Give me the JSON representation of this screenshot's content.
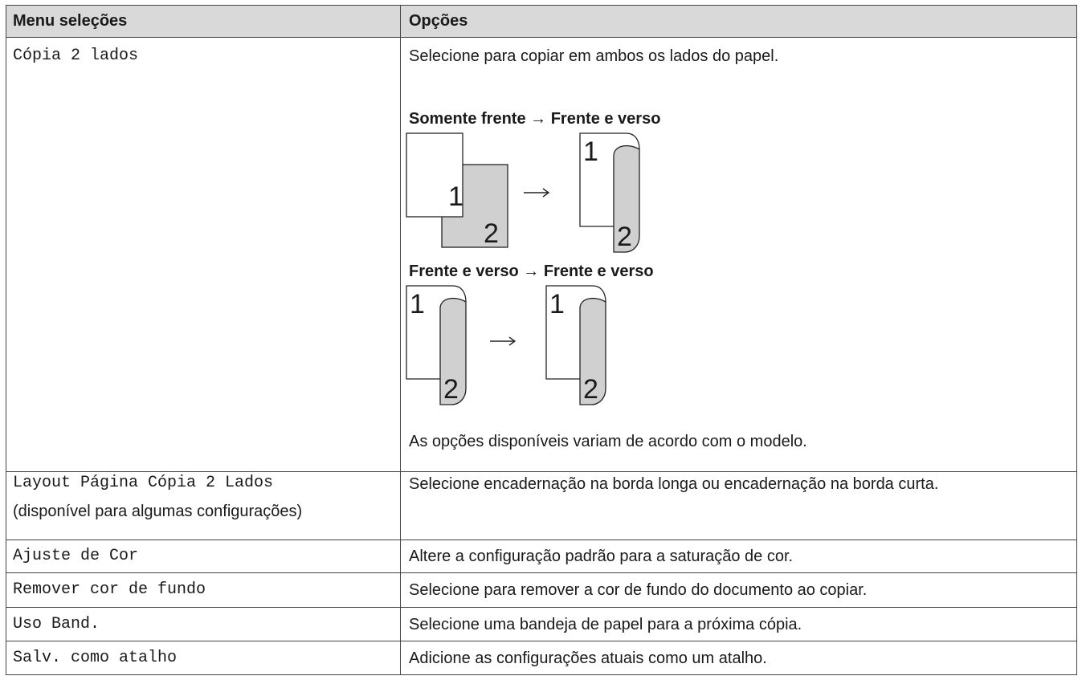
{
  "table": {
    "headers": [
      "Menu seleções",
      "Opções"
    ],
    "rows": [
      {
        "menu": "Cópia 2 lados",
        "description": "Selecione para copiar em ambos os lados do papel.",
        "figures": [
          {
            "title": "Somente frente → Frente e verso",
            "labels": [
              "1",
              "2",
              "1",
              "2"
            ]
          },
          {
            "title": "Frente e verso → Frente e verso",
            "labels": [
              "1",
              "2",
              "1",
              "2"
            ]
          }
        ],
        "note": "As opções disponíveis variam de acordo com o modelo."
      },
      {
        "menu": "Layout Página Cópia 2 Lados",
        "menu_note": "(disponível para algumas configurações)",
        "description": "Selecione encadernação na borda longa ou encadernação na borda curta."
      },
      {
        "menu": "Ajuste de Cor",
        "description": "Altere a configuração padrão para a saturação de cor."
      },
      {
        "menu": "Remover cor de fundo",
        "description": "Selecione para remover a cor de fundo do documento ao copiar."
      },
      {
        "menu": "Uso Band.",
        "description": "Selecione uma bandeja de papel para a próxima cópia."
      },
      {
        "menu": "Salv. como atalho",
        "description": "Adicione as configurações atuais como um atalho."
      }
    ]
  }
}
